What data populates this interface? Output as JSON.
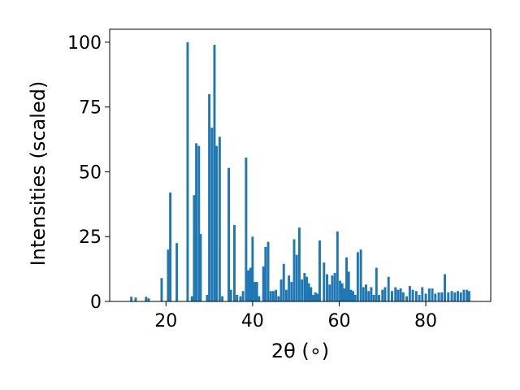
{
  "chart_data": {
    "type": "bar",
    "title": "",
    "xlabel": "2θ (∘)",
    "ylabel": "Intensities (scaled)",
    "xlim": [
      7,
      95
    ],
    "ylim": [
      0,
      105
    ],
    "xticks": [
      20,
      40,
      60,
      80
    ],
    "yticks": [
      0,
      25,
      50,
      75,
      100
    ],
    "grid": false,
    "bar_color": "#1f77b4",
    "bar_width": 0.55,
    "x": [
      12.0,
      13.0,
      15.4,
      16.0,
      19.0,
      20.5,
      21.0,
      22.5,
      25.0,
      26.0,
      26.5,
      27.0,
      27.6,
      28.0,
      29.5,
      30.0,
      30.6,
      31.2,
      31.7,
      32.4,
      33.0,
      34.5,
      35.0,
      35.8,
      36.4,
      37.2,
      37.8,
      38.5,
      39.0,
      39.5,
      40.0,
      40.5,
      41.0,
      41.5,
      42.5,
      43.0,
      43.6,
      44.2,
      44.8,
      45.4,
      46.0,
      46.6,
      47.2,
      47.8,
      48.4,
      49.0,
      49.6,
      50.2,
      50.8,
      51.4,
      52.0,
      52.5,
      53.0,
      53.5,
      54.0,
      54.5,
      55.0,
      55.5,
      56.5,
      57.2,
      57.8,
      58.4,
      59.0,
      59.6,
      60.2,
      60.7,
      61.2,
      61.7,
      62.2,
      62.7,
      63.2,
      63.7,
      64.3,
      65.0,
      65.6,
      66.2,
      66.8,
      67.4,
      68.0,
      68.6,
      69.2,
      70.0,
      70.6,
      71.4,
      72.2,
      73.0,
      73.6,
      74.2,
      74.8,
      75.6,
      76.3,
      77.0,
      77.8,
      78.5,
      79.2,
      80.0,
      80.8,
      81.5,
      82.2,
      83.0,
      83.7,
      84.4,
      85.2,
      86.0,
      86.7,
      87.4,
      88.1,
      88.8,
      89.5,
      90.0
    ],
    "values": [
      1.8,
      1.5,
      1.8,
      1.2,
      9.0,
      20.0,
      42.0,
      22.5,
      100.0,
      2.0,
      41.0,
      61.0,
      60.0,
      26.0,
      2.5,
      80.0,
      67.0,
      99.0,
      60.0,
      63.5,
      2.0,
      51.5,
      4.5,
      29.5,
      2.5,
      2.0,
      4.0,
      55.5,
      12.0,
      13.0,
      25.0,
      7.5,
      7.5,
      2.0,
      13.5,
      21.0,
      23.0,
      4.0,
      4.0,
      4.5,
      2.0,
      8.5,
      14.5,
      4.5,
      10.0,
      7.5,
      24.0,
      18.0,
      28.5,
      8.5,
      11.0,
      9.5,
      7.0,
      5.5,
      2.5,
      3.5,
      3.0,
      23.5,
      15.0,
      10.5,
      6.5,
      10.0,
      11.0,
      27.0,
      8.0,
      7.0,
      5.0,
      17.0,
      11.5,
      4.5,
      4.0,
      2.5,
      19.0,
      20.0,
      5.5,
      6.5,
      4.0,
      5.5,
      2.5,
      13.0,
      2.5,
      4.5,
      5.5,
      9.5,
      4.0,
      5.5,
      4.5,
      5.0,
      3.5,
      2.0,
      6.0,
      4.5,
      4.0,
      2.5,
      5.5,
      3.0,
      5.0,
      5.0,
      3.0,
      3.5,
      3.5,
      10.5,
      3.5,
      4.0,
      3.5,
      4.0,
      3.5,
      4.5,
      4.5,
      4.0
    ]
  }
}
